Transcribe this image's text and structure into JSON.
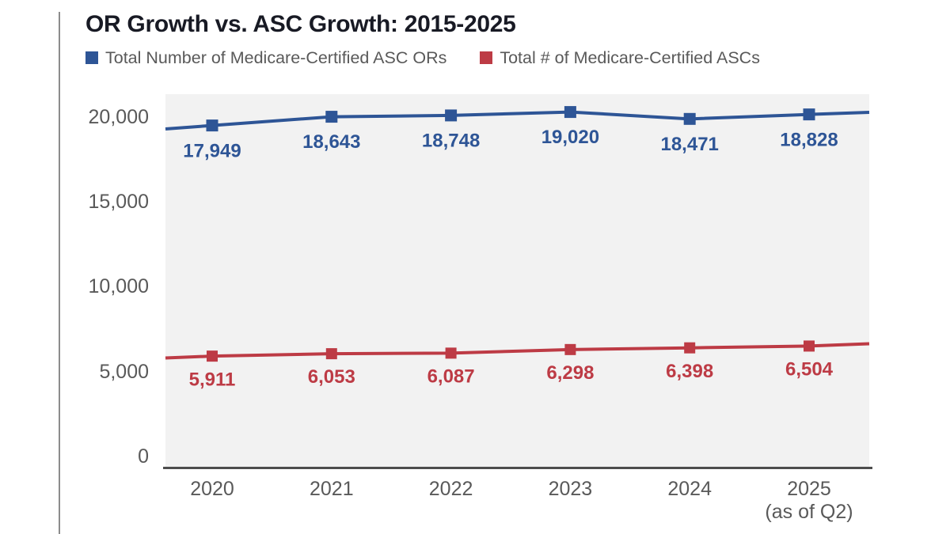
{
  "title": "OR Growth vs. ASC Growth: 2015-2025",
  "colors": {
    "or_series": "#2e5596",
    "asc_series": "#bd3b45",
    "axis_text": "#595959",
    "axis_line": "#4d4d4d",
    "plot_background": "#f2f2f2",
    "title_text": "#181a24",
    "divider": "#8c8c8c"
  },
  "legend": [
    {
      "label": "Total Number of Medicare-Certified ASC ORs",
      "color": "#2e5596"
    },
    {
      "label": "Total # of Medicare-Certified ASCs",
      "color": "#bd3b45"
    }
  ],
  "chart_data": {
    "type": "line",
    "title": "OR Growth vs. ASC Growth: 2015-2025",
    "categories": [
      "2020",
      "2021",
      "2022",
      "2023",
      "2024",
      "2025"
    ],
    "category_sublabels": [
      "",
      "",
      "",
      "",
      "",
      "(as of Q2)"
    ],
    "series": [
      {
        "name": "Total Number of Medicare-Certified ASC ORs",
        "color": "#2e5596",
        "values": [
          17949,
          18643,
          18748,
          19020,
          18471,
          18828
        ],
        "labels": [
          "17,949",
          "18,643",
          "18,748",
          "19,020",
          "18,471",
          "18,828"
        ]
      },
      {
        "name": "Total # of Medicare-Certified ASCs",
        "color": "#bd3b45",
        "values": [
          5911,
          6053,
          6087,
          6298,
          6398,
          6504
        ],
        "labels": [
          "5,911",
          "6,053",
          "6,087",
          "6,298",
          "6,398",
          "6,504"
        ]
      }
    ],
    "yticks": [
      0,
      5000,
      10000,
      15000,
      20000
    ],
    "ytick_labels": [
      "0",
      "5,000",
      "10,000",
      "15,000",
      "20,000"
    ],
    "ylim": [
      0,
      21500
    ],
    "xlabel": "",
    "ylabel": "",
    "grid": false,
    "legend_position": "top",
    "marker": "square",
    "plot_background": "#f2f2f2"
  }
}
